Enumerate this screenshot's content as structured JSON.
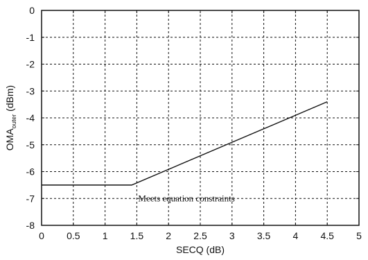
{
  "chart_data": {
    "type": "line",
    "title": "",
    "xlabel": "SECQ (dB)",
    "ylabel": {
      "main": "OMA",
      "subscript": "outer",
      "unit": " (dBm)"
    },
    "xlim": [
      0,
      5
    ],
    "ylim": [
      -8,
      0
    ],
    "xticks": [
      0,
      0.5,
      1,
      1.5,
      2,
      2.5,
      3,
      3.5,
      4,
      4.5,
      5
    ],
    "xtick_labels": [
      "0",
      "0.5",
      "1",
      "1.5",
      "2",
      "2.5",
      "3",
      "3.5",
      "4",
      "4.5",
      "5"
    ],
    "yticks": [
      0,
      -1,
      -2,
      -3,
      -4,
      -5,
      -6,
      -7,
      -8
    ],
    "ytick_labels": [
      "0",
      "-1",
      "-2",
      "-3",
      "-4",
      "-5",
      "-6",
      "-7",
      "-8"
    ],
    "grid": true,
    "series": [
      {
        "x": [
          0,
          1.42,
          4.5
        ],
        "y": [
          -6.5,
          -6.5,
          -3.4
        ]
      }
    ],
    "annotations": [
      {
        "text": "Meets equation constraints",
        "x": 1.5,
        "y": -7.0
      }
    ]
  }
}
